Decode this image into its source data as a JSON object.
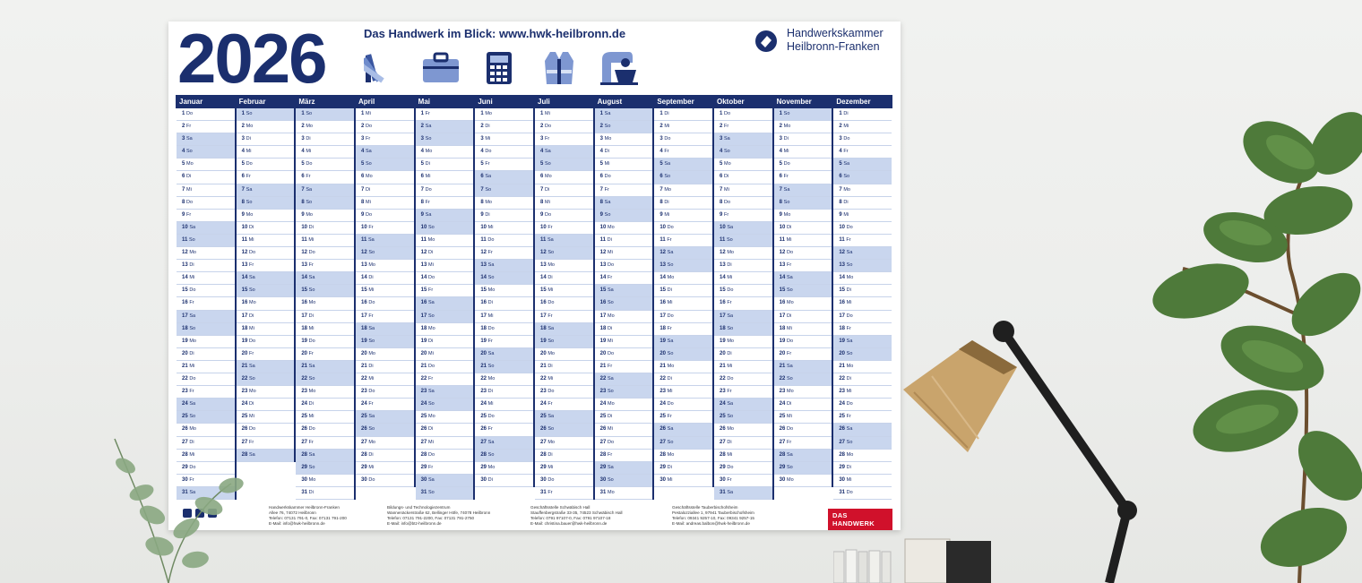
{
  "poster": {
    "year": "2026",
    "tagline": "Das Handwerk im Blick: www.hwk-heilbronn.de",
    "org_line1": "Handwerkskammer",
    "org_line2": "Heilbronn-Franken",
    "icons": [
      "color-swatch-icon",
      "briefcase-icon",
      "calculator-icon",
      "safety-vest-icon",
      "stand-mixer-icon"
    ],
    "brand_badge": "DAS HANDWERK",
    "brand_color": "#1b2f6e",
    "accent_color": "#d0112b",
    "footer": [
      "Handwerkskammer Heilbronn-Franken\nAllee 76, 74072 Heilbronn\nTelefon: 07131 791-0, Fax: 07131 791-200\nE-Mail: info@hwk-heilbronn.de",
      "Bildungs- und Technologiezentrum\nWannenäckerstraße 62, Bellinger Höfe, 74078 Heilbronn\nTelefon: 07131 791-2200, Fax: 07131 791-2750\nE-Mail: info@btz-heilbronn.de",
      "Geschäftsstelle Schwäbisch Hall\nStauffenbergstraße 33-35, 74523 Schwäbisch Hall\nTelefon: 0791 97107-0, Fax: 0791 97107-18\nE-Mail: christina.bauer@hwk-heilbronn.de",
      "Geschäftsstelle Tauberbischofsheim\nPestalozziallee 1, 97941 Tauberbischofsheim\nTelefon: 09341 9257-10, Fax: 09341 9257-15\nE-Mail: andreas.balbon@hwk-heilbronn.de"
    ]
  },
  "calendar": {
    "months": [
      "Januar",
      "Februar",
      "März",
      "April",
      "Mai",
      "Juni",
      "Juli",
      "August",
      "September",
      "Oktober",
      "November",
      "Dezember"
    ],
    "days_in_month": [
      31,
      28,
      31,
      30,
      31,
      30,
      31,
      31,
      30,
      31,
      30,
      31
    ],
    "first_weekday": [
      3,
      6,
      6,
      2,
      4,
      0,
      2,
      5,
      1,
      3,
      6,
      1
    ],
    "weekday_abbr": [
      "Mo",
      "Di",
      "Mi",
      "Do",
      "Fr",
      "Sa",
      "So"
    ]
  }
}
